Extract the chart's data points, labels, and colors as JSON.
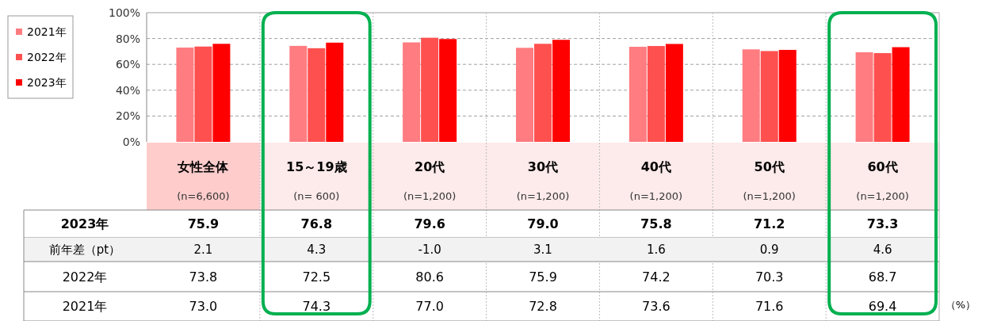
{
  "chart_data": {
    "type": "bar",
    "categories": [
      "女性全体",
      "15～19歳",
      "20代",
      "30代",
      "40代",
      "50代",
      "60代"
    ],
    "series": [
      {
        "name": "2021年",
        "color": "#ff7c80",
        "values": [
          73.0,
          74.3,
          77.0,
          72.8,
          73.6,
          71.6,
          69.4
        ],
        "value_labels": [
          "73.0",
          "74.3",
          "77.0",
          "72.8",
          "73.6",
          "71.6",
          "69.4"
        ]
      },
      {
        "name": "2022年",
        "color": "#ff5050",
        "values": [
          73.8,
          72.5,
          80.6,
          75.9,
          74.2,
          70.3,
          68.7
        ],
        "value_labels": [
          "73.8",
          "72.5",
          "80.6",
          "75.9",
          "74.2",
          "70.3",
          "68.7"
        ]
      },
      {
        "name": "2023年",
        "color": "#ff0000",
        "values": [
          75.9,
          76.8,
          79.6,
          79.0,
          75.8,
          71.2,
          73.3
        ],
        "value_labels": [
          "75.9",
          "76.8",
          "79.6",
          "79.0",
          "75.8",
          "71.2",
          "73.3"
        ]
      }
    ],
    "ylim": [
      0,
      100
    ],
    "yticks": [
      {
        "value": 0,
        "label": "0%"
      },
      {
        "value": 20,
        "label": "20%"
      },
      {
        "value": 40,
        "label": "40%"
      },
      {
        "value": 60,
        "label": "60%"
      },
      {
        "value": 80,
        "label": "80%"
      },
      {
        "value": 100,
        "label": "100%"
      }
    ],
    "grid": "y",
    "legend": "top left",
    "annotations": [
      "(n=6,600)",
      "(n=  600)",
      "(n=1,200)",
      "(n=1,200)",
      "(n=1,200)",
      "(n=1,200)",
      "(n=1,200)",
      "前年差（pt）",
      "2.1",
      "4.3",
      "-1.0",
      "3.1",
      "1.6",
      "0.9",
      "4.6",
      "（%）"
    ]
  }
}
